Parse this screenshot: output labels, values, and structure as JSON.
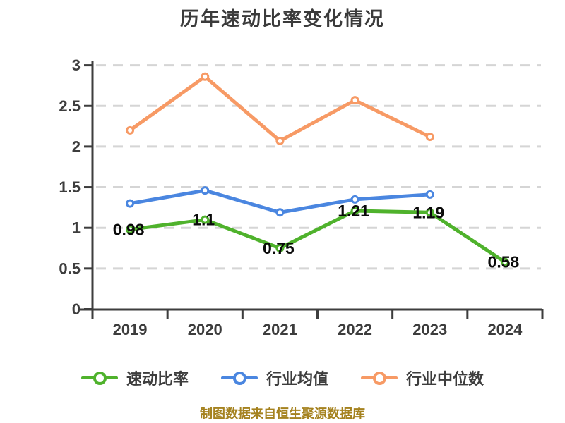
{
  "title": "历年速动比率变化情况",
  "caption": "制图数据来自恒生聚源数据库",
  "colors": {
    "background": "#ffffff",
    "title_text": "#3b3b3b",
    "axis": "#3d3d3d",
    "gridline": "#d5d5d5",
    "tick_label": "#3d3d3d",
    "data_label": "#0a0a0a",
    "caption_text": "#a5821f",
    "series_quick_ratio": "#4fb22c",
    "series_industry_mean": "#4a86e0",
    "series_industry_median": "#f79a65"
  },
  "chart_data": {
    "type": "line",
    "title": "历年速动比率变化情况",
    "categories": [
      "2019",
      "2020",
      "2021",
      "2022",
      "2023",
      "2024"
    ],
    "series": [
      {
        "name": "行业中位数",
        "color": "#f79a65",
        "values": [
          2.2,
          2.86,
          2.07,
          2.57,
          2.12,
          null
        ],
        "labels": null
      },
      {
        "name": "行业均值",
        "color": "#4a86e0",
        "values": [
          1.3,
          1.46,
          1.19,
          1.35,
          1.41,
          null
        ],
        "labels": null
      },
      {
        "name": "速动比率",
        "color": "#4fb22c",
        "values": [
          0.98,
          1.1,
          0.75,
          1.21,
          1.19,
          0.58
        ],
        "labels": [
          "0.98",
          "1.1",
          "0.75",
          "1.21",
          "1.19",
          "0.58"
        ]
      }
    ],
    "xlabel": "",
    "ylabel": "",
    "ylim": [
      0,
      3
    ],
    "yticks": [
      0,
      0.5,
      1,
      1.5,
      2,
      2.5,
      3
    ],
    "ytick_labels": [
      "0",
      "0.5",
      "1",
      "1.5",
      "2",
      "2.5",
      "3"
    ],
    "grid": "horizontal-dashed",
    "legend_position": "bottom",
    "marker": "circle-white-fill"
  },
  "legend": {
    "items": [
      {
        "label": "速动比率",
        "color": "#4fb22c"
      },
      {
        "label": "行业均值",
        "color": "#4a86e0"
      },
      {
        "label": "行业中位数",
        "color": "#f79a65"
      }
    ]
  }
}
